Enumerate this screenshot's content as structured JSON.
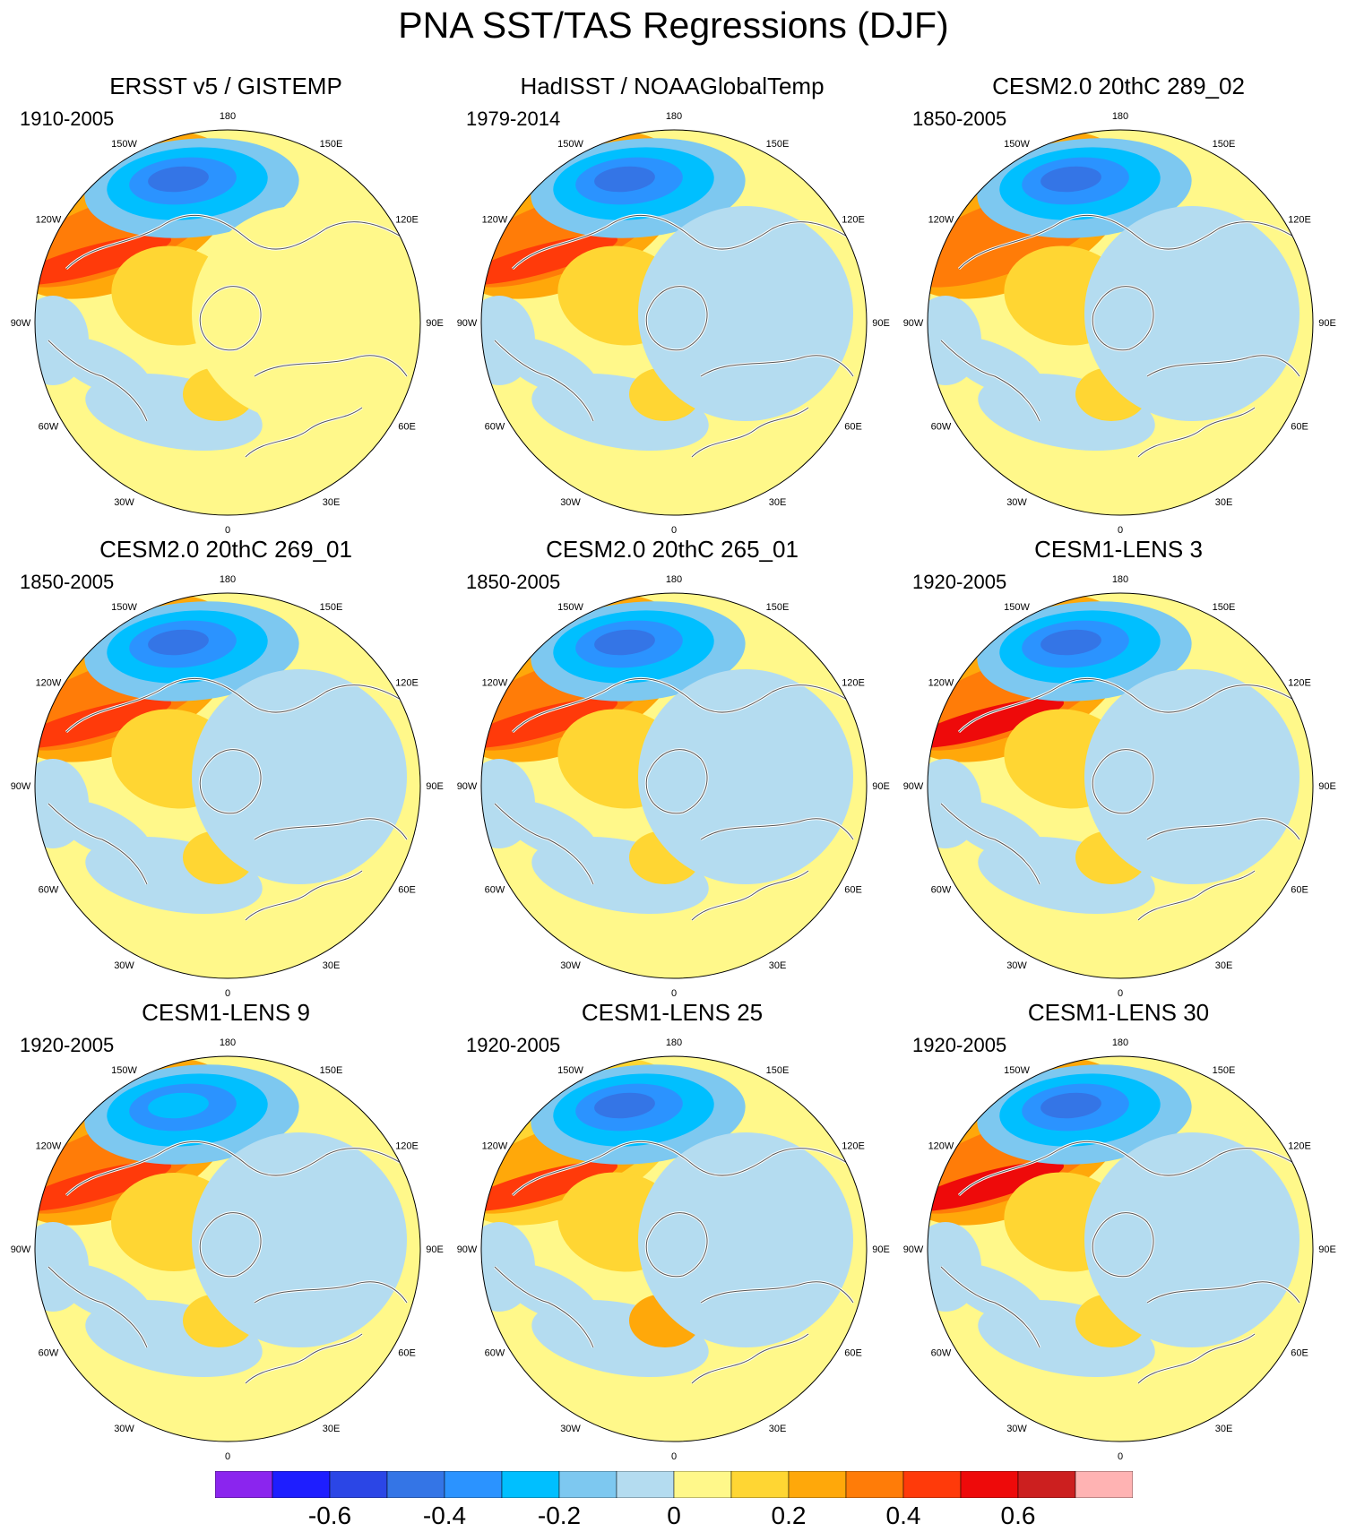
{
  "title": "PNA SST/TAS Regressions (DJF)",
  "panels": [
    {
      "title": "ERSST v5 / GISTEMP",
      "period": "1910-2005"
    },
    {
      "title": "HadISST / NOAAGlobalTemp",
      "period": "1979-2014"
    },
    {
      "title": "CESM2.0 20thC 289_02",
      "period": "1850-2005"
    },
    {
      "title": "CESM2.0 20thC 269_01",
      "period": "1850-2005"
    },
    {
      "title": "CESM2.0 20thC 265_01",
      "period": "1850-2005"
    },
    {
      "title": "CESM1-LENS 3",
      "period": "1920-2005"
    },
    {
      "title": "CESM1-LENS 9",
      "period": "1920-2005"
    },
    {
      "title": "CESM1-LENS 25",
      "period": "1920-2005"
    },
    {
      "title": "CESM1-LENS 30",
      "period": "1920-2005"
    }
  ],
  "longitude_labels": [
    "180",
    "150E",
    "120E",
    "90E",
    "60E",
    "30E",
    "0",
    "30W",
    "60W",
    "90W",
    "120W",
    "150W"
  ],
  "colorbar": {
    "colors": [
      "#8b25ee",
      "#1e1eff",
      "#2b46e6",
      "#3475e6",
      "#2b93ff",
      "#00bfff",
      "#7dc8f0",
      "#b4dcf0",
      "#fff88a",
      "#ffd633",
      "#ffa80a",
      "#ff7c08",
      "#ff3a0a",
      "#ee0a0a",
      "#cc1f1f",
      "#ffb3b3"
    ],
    "tick_labels": [
      "-0.6",
      "-0.4",
      "-0.2",
      "0",
      "0.2",
      "0.4",
      "0.6"
    ]
  }
}
